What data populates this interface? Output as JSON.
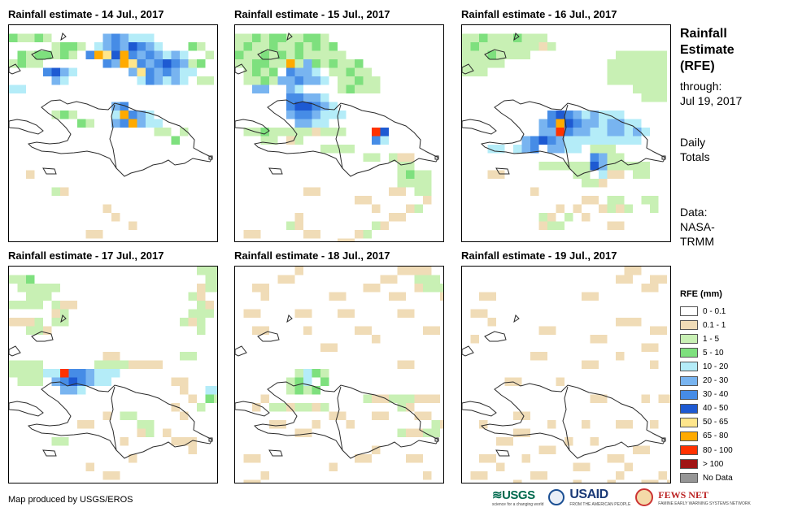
{
  "panels": [
    {
      "title": "Rainfall estimate - 14 Jul., 2017",
      "date": "14 Jul., 2017"
    },
    {
      "title": "Rainfall estimate - 15 Jul., 2017",
      "date": "15 Jul., 2017"
    },
    {
      "title": "Rainfall estimate - 16 Jul., 2017",
      "date": "16 Jul., 2017"
    },
    {
      "title": "Rainfall estimate - 17 Jul., 2017",
      "date": "17 Jul., 2017"
    },
    {
      "title": "Rainfall estimate - 18 Jul., 2017",
      "date": "18 Jul., 2017"
    },
    {
      "title": "Rainfall estimate - 19 Jul., 2017",
      "date": "19 Jul., 2017"
    }
  ],
  "side": {
    "title_line1": "Rainfall",
    "title_line2": "Estimate",
    "title_line3": "(RFE)",
    "through_label": "through:",
    "through_date": "Jul 19, 2017",
    "totals_line1": "Daily",
    "totals_line2": "Totals",
    "data_line1": "Data:",
    "data_line2": "NASA-",
    "data_line3": "TRMM"
  },
  "legend": {
    "title": "RFE (mm)",
    "items": [
      {
        "label": "0 - 0.1",
        "color": "#ffffff"
      },
      {
        "label": "0.1 - 1",
        "color": "#f0dcb7"
      },
      {
        "label": "1 - 5",
        "color": "#c8f0b4"
      },
      {
        "label": "5 - 10",
        "color": "#7ee07e"
      },
      {
        "label": "10 - 20",
        "color": "#b4ecf8"
      },
      {
        "label": "20 - 30",
        "color": "#78b4f0"
      },
      {
        "label": "30 - 40",
        "color": "#468ce6"
      },
      {
        "label": "40 - 50",
        "color": "#1e5ad2"
      },
      {
        "label": "50 - 65",
        "color": "#ffe68c"
      },
      {
        "label": "65 - 80",
        "color": "#ffaa00"
      },
      {
        "label": "80 - 100",
        "color": "#ff3200"
      },
      {
        "label": "> 100",
        "color": "#a01414"
      },
      {
        "label": "No Data",
        "color": "#969696"
      }
    ]
  },
  "footer": {
    "credit": "Map produced by USGS/EROS",
    "logo_usgs": "≋USGS",
    "logo_usgs_tag": "science for a changing world",
    "logo_usaid": "USAID",
    "logo_usaid_tag": "FROM THE AMERICAN PEOPLE",
    "logo_fews": "FEWS NET",
    "logo_fews_tag": "FAMINE EARLY WARNING SYSTEMS NETWORK"
  }
}
